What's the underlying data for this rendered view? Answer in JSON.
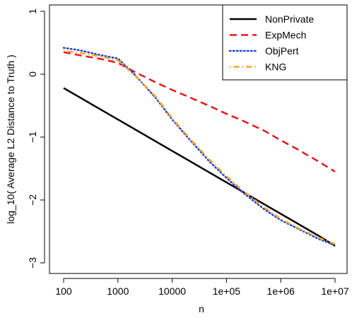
{
  "chart_data": {
    "type": "line",
    "title": "",
    "xlabel": "n",
    "ylabel": "log_10( Average L2 Distance to Truth )",
    "x_scale": "log10",
    "x_ticks": [
      100,
      1000,
      10000,
      100000,
      1000000,
      10000000
    ],
    "x_tick_labels": [
      "100",
      "1000",
      "10000",
      "1e+05",
      "1e+06",
      "1e+07"
    ],
    "y_ticks": [
      -3,
      -2,
      -1,
      0,
      1
    ],
    "y_tick_labels": [
      "−3",
      "−2",
      "−1",
      "0",
      "1"
    ],
    "xlim": [
      100,
      10000000
    ],
    "ylim": [
      -3.1,
      1.2
    ],
    "grid": false,
    "legend_position": "top-right",
    "x": [
      100,
      200,
      500,
      1000,
      2000,
      5000,
      10000,
      20000,
      50000,
      100000,
      200000,
      500000,
      1000000,
      2000000,
      5000000,
      10000000
    ],
    "series": [
      {
        "name": "NonPrivate",
        "color": "#000000",
        "dash": "solid",
        "values": [
          -0.22,
          -0.37,
          -0.57,
          -0.72,
          -0.87,
          -1.07,
          -1.22,
          -1.37,
          -1.57,
          -1.72,
          -1.87,
          -2.07,
          -2.22,
          -2.37,
          -2.57,
          -2.73
        ]
      },
      {
        "name": "ExpMech",
        "color": "#e41a1c",
        "dash": "dashed",
        "values": [
          0.35,
          0.3,
          0.24,
          0.18,
          0.04,
          -0.13,
          -0.25,
          -0.36,
          -0.51,
          -0.63,
          -0.74,
          -0.9,
          -1.05,
          -1.19,
          -1.39,
          -1.55
        ]
      },
      {
        "name": "ObjPert",
        "color": "#1f3fd8",
        "dash": "dotted",
        "values": [
          0.42,
          0.38,
          0.3,
          0.25,
          0.0,
          -0.38,
          -0.72,
          -1.02,
          -1.4,
          -1.65,
          -1.88,
          -2.15,
          -2.32,
          -2.45,
          -2.62,
          -2.72
        ]
      },
      {
        "name": "KNG",
        "color": "#f5a623",
        "dash": "dotdash",
        "values": [
          0.37,
          0.34,
          0.28,
          0.22,
          -0.01,
          -0.36,
          -0.7,
          -1.0,
          -1.37,
          -1.62,
          -1.85,
          -2.12,
          -2.3,
          -2.44,
          -2.6,
          -2.7
        ]
      }
    ]
  }
}
